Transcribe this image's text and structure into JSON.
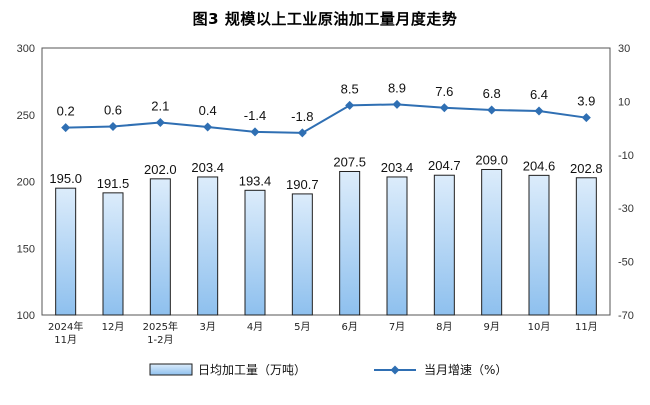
{
  "chart_data": {
    "type": "bar",
    "title": "图3  规模以上工业原油加工量月度走势",
    "categories": [
      [
        "2024年",
        "11月"
      ],
      [
        "12月"
      ],
      [
        "2025年",
        "1-2月"
      ],
      [
        "3月"
      ],
      [
        "4月"
      ],
      [
        "5月"
      ],
      [
        "6月"
      ],
      [
        "7月"
      ],
      [
        "8月"
      ],
      [
        "9月"
      ],
      [
        "10月"
      ],
      [
        "11月"
      ]
    ],
    "series": [
      {
        "name": "日均加工量（万吨）",
        "type": "bar",
        "axis": "left",
        "values": [
          195.0,
          191.5,
          202.0,
          203.4,
          193.4,
          190.7,
          207.5,
          203.4,
          204.7,
          209.0,
          204.6,
          202.8
        ],
        "labels": [
          "195.0",
          "191.5",
          "202.0",
          "203.4",
          "193.4",
          "190.7",
          "207.5",
          "203.4",
          "204.7",
          "209.0",
          "204.6",
          "202.8"
        ]
      },
      {
        "name": "当月增速（%）",
        "type": "line",
        "axis": "right",
        "values": [
          0.2,
          0.6,
          2.1,
          0.4,
          -1.4,
          -1.8,
          8.5,
          8.9,
          7.6,
          6.8,
          6.4,
          3.9
        ],
        "labels": [
          "0.2",
          "0.6",
          "2.1",
          "0.4",
          "-1.4",
          "-1.8",
          "8.5",
          "8.9",
          "7.6",
          "6.8",
          "6.4",
          "3.9"
        ]
      }
    ],
    "y_left": {
      "min": 100,
      "max": 300,
      "ticks": [
        100,
        150,
        200,
        250,
        300
      ]
    },
    "y_right": {
      "min": -70,
      "max": 30,
      "ticks": [
        -70,
        -50,
        -30,
        -10,
        10,
        30
      ]
    },
    "colors": {
      "bar_fill_top": "#dcecfb",
      "bar_fill_bottom": "#8ec0ee",
      "bar_stroke": "#1f1f1f",
      "line": "#2f6fb3",
      "marker": "#2f6fb3"
    },
    "legend_position": "bottom",
    "grid": false
  }
}
